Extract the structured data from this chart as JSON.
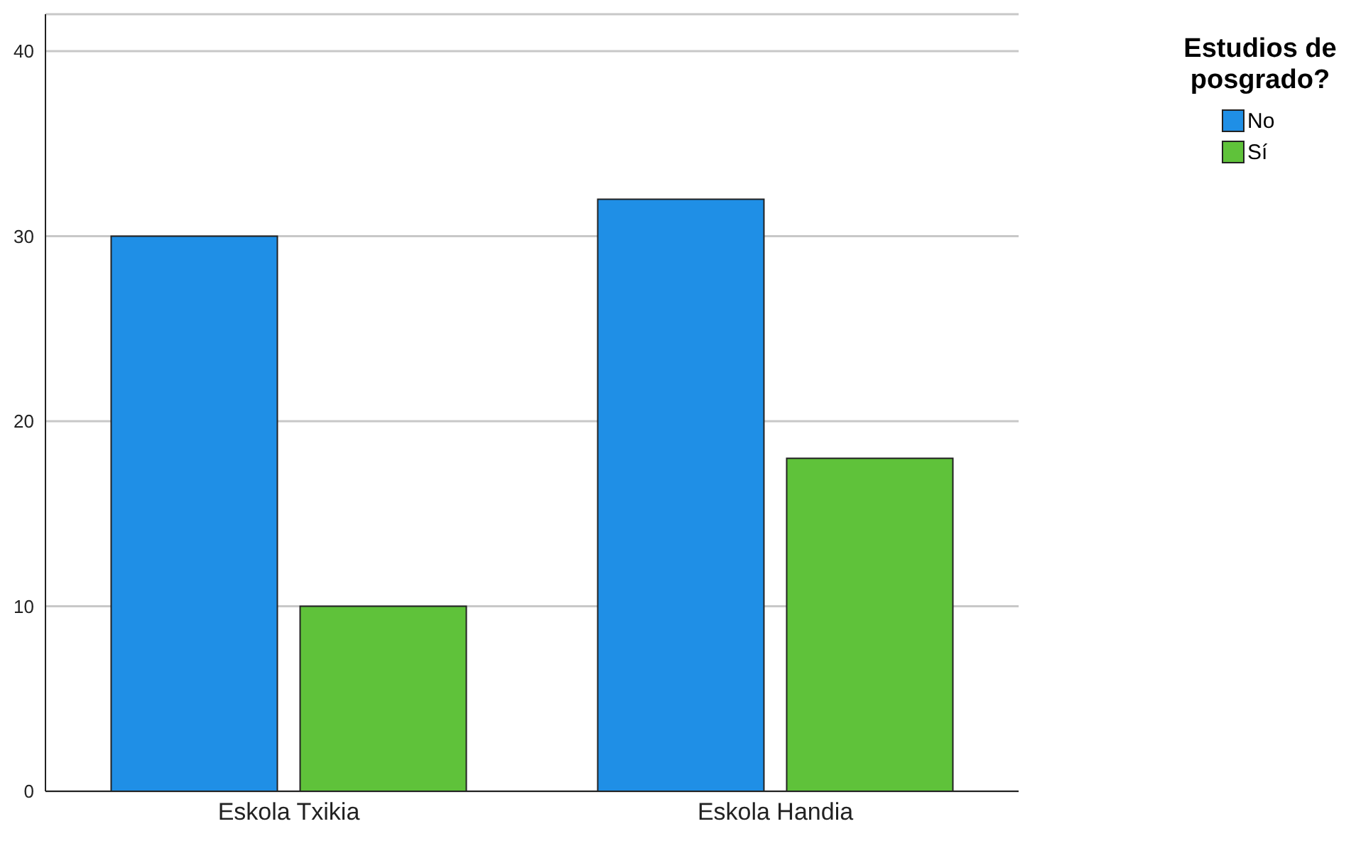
{
  "chart_data": {
    "type": "bar",
    "categories": [
      "Eskola Txikia",
      "Eskola Handia"
    ],
    "series": [
      {
        "name": "No",
        "color": "#1f8fe6",
        "values": [
          30,
          32
        ]
      },
      {
        "name": "Sí",
        "color": "#5fc23a",
        "values": [
          10,
          18
        ]
      }
    ],
    "legend_title": "Estudios de posgrado?",
    "legend": "top right",
    "ylim": [
      0,
      42
    ],
    "yticks": [
      0,
      10,
      20,
      30,
      40
    ],
    "grid": "y"
  }
}
